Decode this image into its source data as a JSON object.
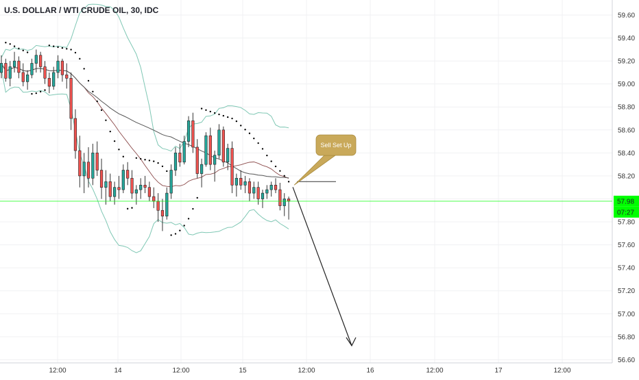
{
  "chart_data": {
    "type": "candlestick",
    "title": "U.S. DOLLAR / WTI CRUDE OIL, 30, IDC",
    "ylim": [
      56.5,
      59.7
    ],
    "yticks": [
      "59.60",
      "59.40",
      "59.20",
      "59.00",
      "58.80",
      "58.60",
      "58.40",
      "58.20",
      "58.00",
      "57.80",
      "57.60",
      "57.40",
      "57.20",
      "57.00",
      "56.80",
      "56.60"
    ],
    "xticks": [
      "12:00",
      "14",
      "12:00",
      "15",
      "12:00",
      "16",
      "12:00",
      "17",
      "12:00"
    ],
    "last_price": "57.98",
    "countdown": "07:27",
    "annotation": "Sell Set Up",
    "resistance_level": 58.15,
    "forecast_target": 56.77,
    "colors": {
      "up": "#26a69a",
      "down": "#ef5350",
      "bb": "#7fc7b4",
      "ma": "#8b4a4a",
      "sma": "#555555",
      "price_line": "#00ff00",
      "callout": "#c9a95a",
      "sar": "#000000"
    },
    "candles": [
      [
        59.1,
        59.25,
        59.05,
        59.18
      ],
      [
        59.18,
        59.22,
        59.02,
        59.05
      ],
      [
        59.05,
        59.2,
        58.98,
        59.15
      ],
      [
        59.15,
        59.28,
        59.1,
        59.2
      ],
      [
        59.2,
        59.24,
        59.05,
        59.1
      ],
      [
        59.1,
        59.18,
        58.98,
        59.02
      ],
      [
        59.02,
        59.12,
        58.95,
        59.08
      ],
      [
        59.08,
        59.22,
        59.05,
        59.18
      ],
      [
        59.18,
        59.3,
        59.1,
        59.25
      ],
      [
        59.25,
        59.28,
        59.1,
        59.15
      ],
      [
        59.15,
        59.2,
        59.0,
        59.05
      ],
      [
        59.05,
        59.1,
        58.92,
        58.98
      ],
      [
        58.98,
        59.15,
        58.95,
        59.1
      ],
      [
        59.1,
        59.25,
        59.05,
        59.2
      ],
      [
        59.2,
        59.22,
        59.02,
        59.08
      ],
      [
        59.08,
        59.18,
        58.96,
        59.05
      ],
      [
        59.05,
        59.1,
        58.6,
        58.7
      ],
      [
        58.7,
        58.78,
        58.35,
        58.42
      ],
      [
        58.42,
        58.55,
        58.1,
        58.2
      ],
      [
        58.2,
        58.4,
        58.05,
        58.32
      ],
      [
        58.32,
        58.45,
        58.1,
        58.18
      ],
      [
        58.18,
        58.48,
        58.12,
        58.4
      ],
      [
        58.4,
        58.5,
        58.2,
        58.25
      ],
      [
        58.25,
        58.35,
        58.0,
        58.1
      ],
      [
        58.1,
        58.25,
        57.95,
        58.15
      ],
      [
        58.15,
        58.22,
        57.98,
        58.02
      ],
      [
        58.02,
        58.15,
        57.95,
        58.1
      ],
      [
        58.1,
        58.2,
        58.0,
        58.08
      ],
      [
        58.08,
        58.3,
        58.05,
        58.25
      ],
      [
        58.25,
        58.32,
        58.12,
        58.18
      ],
      [
        58.18,
        58.25,
        58.0,
        58.05
      ],
      [
        58.05,
        58.12,
        57.95,
        58.08
      ],
      [
        58.08,
        58.18,
        58.0,
        58.12
      ],
      [
        58.12,
        58.2,
        58.05,
        58.1
      ],
      [
        58.1,
        58.15,
        57.98,
        58.02
      ],
      [
        58.02,
        58.1,
        57.92,
        57.98
      ],
      [
        57.98,
        58.05,
        57.8,
        57.9
      ],
      [
        57.9,
        58.0,
        57.72,
        57.85
      ],
      [
        57.85,
        58.1,
        57.82,
        58.05
      ],
      [
        58.05,
        58.3,
        58.0,
        58.25
      ],
      [
        58.25,
        58.45,
        58.2,
        58.4
      ],
      [
        58.4,
        58.48,
        58.28,
        58.32
      ],
      [
        58.32,
        58.55,
        58.3,
        58.5
      ],
      [
        58.5,
        58.72,
        58.45,
        58.68
      ],
      [
        58.68,
        58.75,
        58.4,
        58.45
      ],
      [
        58.45,
        58.52,
        58.18,
        58.22
      ],
      [
        58.22,
        58.35,
        58.1,
        58.3
      ],
      [
        58.3,
        58.58,
        58.28,
        58.55
      ],
      [
        58.55,
        58.62,
        58.25,
        58.3
      ],
      [
        58.3,
        58.42,
        58.15,
        58.38
      ],
      [
        58.38,
        58.65,
        58.35,
        58.6
      ],
      [
        58.6,
        58.63,
        58.28,
        58.32
      ],
      [
        58.32,
        58.48,
        58.25,
        58.44
      ],
      [
        58.44,
        58.5,
        58.05,
        58.12
      ],
      [
        58.12,
        58.22,
        58.02,
        58.18
      ],
      [
        58.18,
        58.25,
        58.08,
        58.12
      ],
      [
        58.12,
        58.2,
        58.05,
        58.15
      ],
      [
        58.15,
        58.18,
        57.98,
        58.05
      ],
      [
        58.05,
        58.15,
        58.0,
        58.1
      ],
      [
        58.1,
        58.15,
        57.95,
        58.0
      ],
      [
        58.0,
        58.08,
        57.92,
        58.05
      ],
      [
        58.05,
        58.12,
        58.0,
        58.08
      ],
      [
        58.08,
        58.15,
        58.02,
        58.12
      ],
      [
        58.12,
        58.18,
        58.05,
        58.08
      ],
      [
        58.08,
        58.14,
        57.9,
        57.94
      ],
      [
        57.94,
        58.05,
        57.85,
        58.0
      ],
      [
        58.0,
        58.02,
        57.82,
        57.98
      ]
    ]
  }
}
